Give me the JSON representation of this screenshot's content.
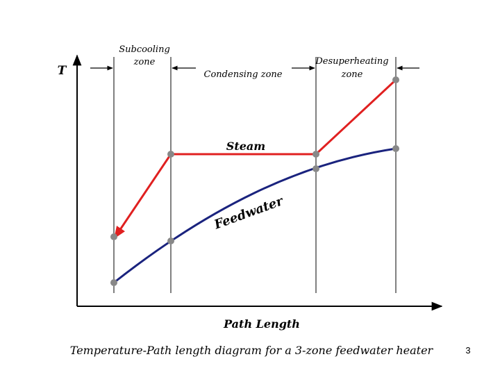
{
  "diagram": {
    "axis_y_label": "T",
    "axis_x_label": "Path Length",
    "zones": {
      "subcooling_line1": "Subcooling",
      "subcooling_line2": "zone",
      "condensing": "Condensing zone",
      "desuperheating_line1": "Desuperheating",
      "desuperheating_line2": "zone"
    },
    "curve_labels": {
      "steam": "Steam",
      "feedwater": "Feedwater"
    },
    "caption": "Temperature-Path length diagram for a 3-zone feedwater heater",
    "colors": {
      "steam_line": "#e02020",
      "feedwater_line": "#1a237e",
      "marker": "#888888"
    }
  },
  "footer": {
    "page_number": "3"
  }
}
